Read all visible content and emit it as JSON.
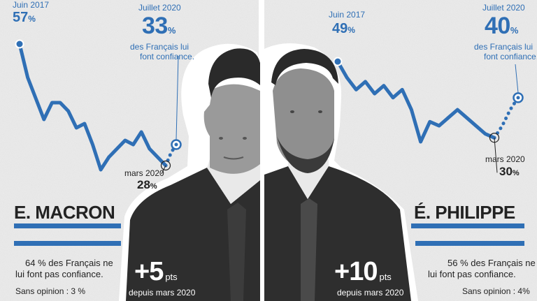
{
  "chart_data": [
    {
      "type": "line",
      "person": "E. MACRON",
      "x_start": "Juin 2017",
      "x_end": "Juillet 2020",
      "values": [
        57,
        49,
        44,
        39,
        43,
        43,
        41,
        37,
        38,
        33,
        27,
        30,
        32,
        34,
        33,
        36,
        32,
        30,
        28
      ],
      "projection": [
        28,
        31,
        33
      ],
      "ylim": [
        25,
        60
      ],
      "annotations": {
        "start": {
          "label": "Juin 2017",
          "value": "57",
          "unit": "%"
        },
        "march": {
          "label": "mars 2020",
          "value": "28",
          "unit": "%"
        },
        "july": {
          "label": "Juillet 2020",
          "value": "33",
          "unit": "%",
          "note_line1": "des Français lui",
          "note_line2": "font confiance."
        }
      }
    },
    {
      "type": "line",
      "person": "É. PHILIPPE",
      "x_start": "Juin 2017",
      "x_end": "Juillet 2020",
      "values": [
        49,
        45,
        42,
        44,
        41,
        43,
        40,
        42,
        37,
        29,
        34,
        33,
        35,
        37,
        35,
        33,
        31,
        30
      ],
      "projection": [
        30,
        33,
        37,
        40
      ],
      "ylim": [
        25,
        60
      ],
      "annotations": {
        "start": {
          "label": "Juin 2017",
          "value": "49",
          "unit": "%"
        },
        "march": {
          "label": "mars 2020",
          "value": "30",
          "unit": "%"
        },
        "july": {
          "label": "Juillet 2020",
          "value": "40",
          "unit": "%",
          "note_line1": "des Français lui",
          "note_line2": "font confiance."
        }
      }
    }
  ],
  "macron": {
    "name": "E. MACRON",
    "no_trust_line1": "64 % des Français ne",
    "no_trust_line2": "lui font pas confiance.",
    "no_opinion": "Sans opinion : 3 %",
    "gain": "+5",
    "gain_unit": "pts",
    "gain_since": "depuis mars 2020"
  },
  "philippe": {
    "name": "É. PHILIPPE",
    "no_trust_line1": "56 % des Français ne",
    "no_trust_line2": "lui font pas confiance.",
    "no_opinion": "Sans opinion : 4%",
    "gain": "+10",
    "gain_unit": "pts",
    "gain_since": "depuis mars 2020"
  },
  "colors": {
    "line": "#2f6fb5",
    "text": "#222222",
    "paper": "#ececec",
    "photo": "#3a3a3a"
  }
}
